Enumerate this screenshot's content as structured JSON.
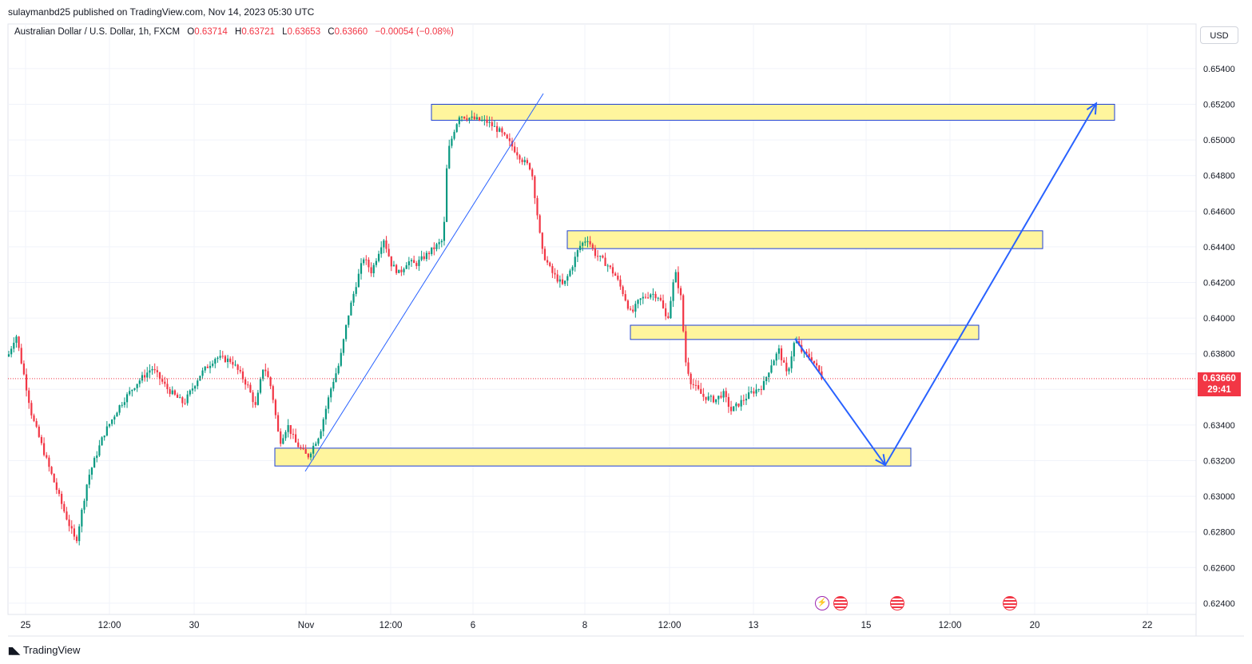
{
  "header": {
    "published": "sulaymanbd25 published on TradingView.com, Nov 14, 2023 05:30 UTC"
  },
  "legend": {
    "symbol": "Australian Dollar / U.S. Dollar, 1h, FXCM",
    "o_label": "O",
    "o": "0.63714",
    "h_label": "H",
    "h": "0.63721",
    "l_label": "L",
    "l": "0.63653",
    "c_label": "C",
    "c": "0.63660",
    "change": "−0.00054 (−0.08%)"
  },
  "currency": "USD",
  "last_price": {
    "value": "0.63660",
    "countdown": "29:41"
  },
  "brand": "TradingView",
  "colors": {
    "up": "#089981",
    "down": "#f23645",
    "zone_fill": "#fff59d",
    "zone_border": "#1e40d6",
    "arrow": "#2962ff"
  },
  "events": [
    "flash-icon",
    "us-flag-icon",
    "us-flag-icon",
    "us-flag-icon"
  ],
  "chart_data": {
    "type": "candlestick",
    "title": "",
    "xlabel": "",
    "ylabel": "",
    "ylim": [
      0.6232,
      0.6558
    ],
    "y_ticks": [
      "0.65400",
      "0.65200",
      "0.65000",
      "0.64800",
      "0.64600",
      "0.64400",
      "0.64200",
      "0.64000",
      "0.63800",
      "0.63600",
      "0.63400",
      "0.63200",
      "0.63000",
      "0.62800",
      "0.62600",
      "0.62400"
    ],
    "x_ticks": [
      "25",
      "12:00",
      "30",
      "Nov",
      "12:00",
      "6",
      "8",
      "12:00",
      "13",
      "15",
      "12:00",
      "20",
      "22"
    ],
    "path_anchors": [
      [
        0,
        0.6366
      ],
      [
        20,
        0.6391
      ],
      [
        40,
        0.6345
      ],
      [
        60,
        0.6318
      ],
      [
        80,
        0.6292
      ],
      [
        95,
        0.6274
      ],
      [
        110,
        0.631
      ],
      [
        130,
        0.6335
      ],
      [
        150,
        0.6351
      ],
      [
        170,
        0.6363
      ],
      [
        190,
        0.6372
      ],
      [
        210,
        0.636
      ],
      [
        230,
        0.6352
      ],
      [
        250,
        0.6368
      ],
      [
        270,
        0.6378
      ],
      [
        290,
        0.6376
      ],
      [
        310,
        0.6362
      ],
      [
        320,
        0.635
      ],
      [
        330,
        0.6374
      ],
      [
        340,
        0.636
      ],
      [
        350,
        0.633
      ],
      [
        360,
        0.634
      ],
      [
        370,
        0.633
      ],
      [
        385,
        0.6322
      ],
      [
        400,
        0.6335
      ],
      [
        415,
        0.6362
      ],
      [
        425,
        0.6375
      ],
      [
        435,
        0.64
      ],
      [
        445,
        0.6418
      ],
      [
        455,
        0.6434
      ],
      [
        465,
        0.6426
      ],
      [
        480,
        0.6445
      ],
      [
        490,
        0.643
      ],
      [
        500,
        0.6425
      ],
      [
        510,
        0.6432
      ],
      [
        520,
        0.643
      ],
      [
        540,
        0.6438
      ],
      [
        555,
        0.6444
      ],
      [
        560,
        0.6492
      ],
      [
        568,
        0.6505
      ],
      [
        575,
        0.6514
      ],
      [
        590,
        0.6512
      ],
      [
        610,
        0.651
      ],
      [
        625,
        0.6505
      ],
      [
        640,
        0.6497
      ],
      [
        655,
        0.6488
      ],
      [
        665,
        0.6484
      ],
      [
        672,
        0.646
      ],
      [
        678,
        0.6438
      ],
      [
        690,
        0.6426
      ],
      [
        705,
        0.6418
      ],
      [
        715,
        0.6428
      ],
      [
        725,
        0.644
      ],
      [
        735,
        0.6445
      ],
      [
        745,
        0.6436
      ],
      [
        760,
        0.643
      ],
      [
        770,
        0.6424
      ],
      [
        780,
        0.6414
      ],
      [
        790,
        0.6402
      ],
      [
        800,
        0.641
      ],
      [
        815,
        0.6414
      ],
      [
        825,
        0.6412
      ],
      [
        835,
        0.6398
      ],
      [
        845,
        0.6426
      ],
      [
        852,
        0.6412
      ],
      [
        858,
        0.6376
      ],
      [
        865,
        0.6364
      ],
      [
        880,
        0.6356
      ],
      [
        895,
        0.6354
      ],
      [
        905,
        0.6358
      ],
      [
        915,
        0.6348
      ],
      [
        925,
        0.6352
      ],
      [
        940,
        0.6358
      ],
      [
        955,
        0.6362
      ],
      [
        965,
        0.6374
      ],
      [
        975,
        0.6382
      ],
      [
        985,
        0.6368
      ],
      [
        995,
        0.6388
      ],
      [
        1005,
        0.638
      ],
      [
        1015,
        0.6378
      ],
      [
        1030,
        0.6366
      ]
    ],
    "zones": [
      {
        "x0": 540,
        "x1": 1395,
        "y_top": 0.652,
        "y_bottom": 0.6511
      },
      {
        "x0": 710,
        "x1": 1305,
        "y_top": 0.6449,
        "y_bottom": 0.6439
      },
      {
        "x0": 789,
        "x1": 1225,
        "y_top": 0.6396,
        "y_bottom": 0.6388
      },
      {
        "x0": 344,
        "x1": 1140,
        "y_top": 0.6327,
        "y_bottom": 0.6317
      }
    ],
    "trendline": [
      [
        382,
        0.6314
      ],
      [
        680,
        0.6526
      ]
    ],
    "projection": [
      [
        995,
        0.63885
      ],
      [
        1108,
        0.63175
      ],
      [
        1372,
        0.65205
      ]
    ]
  }
}
